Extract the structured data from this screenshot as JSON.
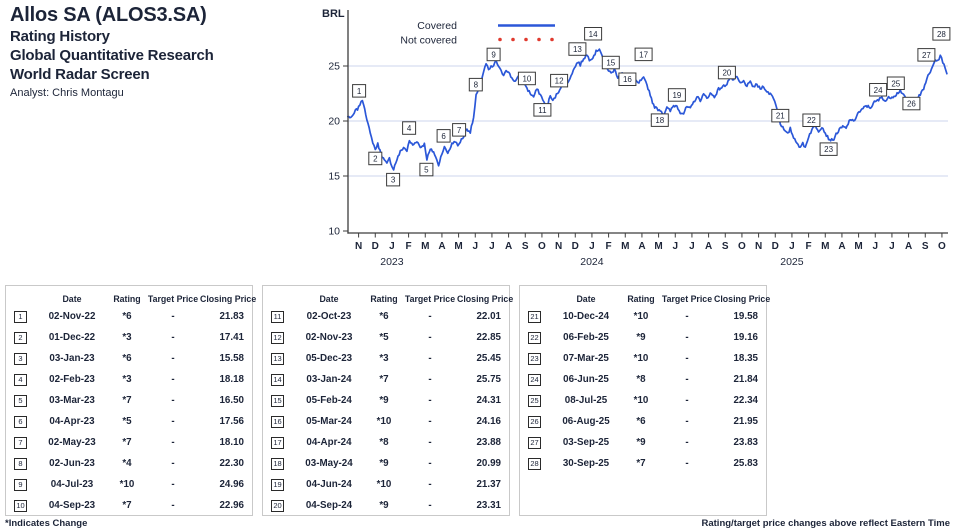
{
  "header": {
    "title": "Allos SA (ALOS3.SA)",
    "subtitle_lines": [
      "Rating History",
      "Global Quantitative Research",
      "World Radar Screen"
    ],
    "analyst": "Analyst: Chris Montagu"
  },
  "colors": {
    "accent_line": "#2b57d8",
    "not_covered": "#e03a2f",
    "grid": "#ccd5ec",
    "axis": "#3c3c3c",
    "text": "#1c2438",
    "table_border": "#c9c9c9"
  },
  "chart_data": {
    "type": "line",
    "currency_label": "BRL",
    "legend": [
      {
        "label": "Covered",
        "style": "solid",
        "color": "#2b57d8"
      },
      {
        "label": "Not covered",
        "style": "dotted",
        "color": "#e03a2f"
      }
    ],
    "y_ticks": [
      25,
      20,
      15,
      10
    ],
    "ylim": [
      10,
      28.5
    ],
    "grid": "horizontal",
    "x_month_labels": [
      "N",
      "D",
      "J",
      "F",
      "M",
      "A",
      "M",
      "J",
      "J",
      "A",
      "S",
      "O",
      "N",
      "D",
      "J",
      "F",
      "M",
      "A",
      "M",
      "J",
      "J",
      "A",
      "S",
      "O",
      "N",
      "D",
      "J",
      "F",
      "M",
      "A",
      "M",
      "J",
      "J",
      "A",
      "S",
      "O"
    ],
    "year_labels": [
      {
        "label": "2023",
        "month_index": 2
      },
      {
        "label": "2024",
        "month_index": 14
      },
      {
        "label": "2025",
        "month_index": 26
      }
    ],
    "price_points": [
      [
        -0.65,
        20.4
      ],
      [
        -0.4,
        20.3
      ],
      [
        -0.2,
        20.9
      ],
      [
        0.0,
        21.2
      ],
      [
        0.15,
        21.85
      ],
      [
        0.3,
        21.6
      ],
      [
        0.5,
        20.2
      ],
      [
        0.7,
        18.8
      ],
      [
        0.85,
        18.1
      ],
      [
        1.0,
        17.41
      ],
      [
        1.15,
        17.9
      ],
      [
        1.35,
        17.0
      ],
      [
        1.55,
        16.4
      ],
      [
        1.7,
        16.1
      ],
      [
        1.85,
        16.6
      ],
      [
        2.0,
        15.9
      ],
      [
        2.1,
        15.65
      ],
      [
        2.3,
        16.5
      ],
      [
        2.5,
        17.2
      ],
      [
        2.7,
        17.6
      ],
      [
        2.9,
        17.3
      ],
      [
        3.05,
        18.18
      ],
      [
        3.25,
        17.8
      ],
      [
        3.5,
        18.2
      ],
      [
        3.7,
        17.6
      ],
      [
        3.95,
        17.9
      ],
      [
        4.1,
        16.55
      ],
      [
        4.3,
        17.4
      ],
      [
        4.5,
        17.2
      ],
      [
        4.7,
        16.4
      ],
      [
        4.8,
        16.0
      ],
      [
        5.0,
        17.1
      ],
      [
        5.15,
        17.6
      ],
      [
        5.35,
        17.1
      ],
      [
        5.6,
        17.9
      ],
      [
        5.8,
        18.2
      ],
      [
        5.95,
        17.7
      ],
      [
        6.1,
        18.15
      ],
      [
        6.3,
        18.6
      ],
      [
        6.5,
        19.3
      ],
      [
        6.7,
        19.0
      ],
      [
        6.9,
        20.3
      ],
      [
        7.05,
        22.3
      ],
      [
        7.2,
        22.8
      ],
      [
        7.35,
        23.6
      ],
      [
        7.5,
        24.5
      ],
      [
        7.65,
        25.2
      ],
      [
        7.8,
        24.6
      ],
      [
        7.95,
        24.9
      ],
      [
        8.1,
        25.0
      ],
      [
        8.25,
        25.5
      ],
      [
        8.4,
        24.9
      ],
      [
        8.55,
        24.5
      ],
      [
        8.7,
        24.2
      ],
      [
        8.85,
        24.7
      ],
      [
        9.0,
        24.4
      ],
      [
        9.2,
        23.9
      ],
      [
        9.4,
        23.6
      ],
      [
        9.6,
        24.0
      ],
      [
        9.8,
        23.8
      ],
      [
        10.0,
        23.3
      ],
      [
        10.1,
        22.96
      ],
      [
        10.3,
        22.5
      ],
      [
        10.5,
        22.2
      ],
      [
        10.7,
        22.9
      ],
      [
        10.9,
        22.4
      ],
      [
        11.05,
        22.0
      ],
      [
        11.2,
        21.4
      ],
      [
        11.35,
        21.5
      ],
      [
        11.5,
        22.3
      ],
      [
        11.65,
        21.8
      ],
      [
        11.8,
        22.2
      ],
      [
        12.0,
        22.7
      ],
      [
        12.2,
        23.3
      ],
      [
        12.4,
        23.7
      ],
      [
        12.55,
        23.4
      ],
      [
        12.75,
        24.2
      ],
      [
        12.95,
        24.8
      ],
      [
        13.15,
        25.4
      ],
      [
        13.3,
        25.1
      ],
      [
        13.5,
        25.7
      ],
      [
        13.7,
        26.0
      ],
      [
        13.85,
        25.6
      ],
      [
        14.05,
        25.8
      ],
      [
        14.25,
        26.3
      ],
      [
        14.45,
        26.6
      ],
      [
        14.6,
        26.0
      ],
      [
        14.8,
        25.2
      ],
      [
        15.0,
        24.6
      ],
      [
        15.15,
        24.31
      ],
      [
        15.35,
        24.7
      ],
      [
        15.55,
        24.0
      ],
      [
        15.75,
        24.4
      ],
      [
        15.95,
        24.2
      ],
      [
        16.15,
        24.1
      ],
      [
        16.35,
        23.6
      ],
      [
        16.55,
        23.9
      ],
      [
        16.75,
        23.4
      ],
      [
        16.95,
        23.7
      ],
      [
        17.1,
        23.88
      ],
      [
        17.3,
        23.3
      ],
      [
        17.5,
        22.4
      ],
      [
        17.7,
        21.4
      ],
      [
        17.9,
        21.1
      ],
      [
        18.1,
        21.0
      ],
      [
        18.3,
        20.6
      ],
      [
        18.5,
        21.2
      ],
      [
        18.7,
        20.9
      ],
      [
        18.9,
        21.4
      ],
      [
        19.1,
        21.37
      ],
      [
        19.3,
        20.8
      ],
      [
        19.5,
        20.7
      ],
      [
        19.7,
        21.3
      ],
      [
        19.9,
        21.1
      ],
      [
        20.1,
        21.7
      ],
      [
        20.3,
        22.2
      ],
      [
        20.5,
        21.9
      ],
      [
        20.7,
        22.4
      ],
      [
        20.9,
        22.1
      ],
      [
        21.1,
        22.5
      ],
      [
        21.35,
        22.2
      ],
      [
        21.6,
        22.9
      ],
      [
        21.85,
        23.1
      ],
      [
        22.1,
        23.4
      ],
      [
        22.3,
        24.0
      ],
      [
        22.5,
        23.7
      ],
      [
        22.7,
        24.0
      ],
      [
        22.9,
        23.4
      ],
      [
        23.1,
        23.6
      ],
      [
        23.3,
        23.2
      ],
      [
        23.5,
        23.5
      ],
      [
        23.7,
        23.1
      ],
      [
        23.9,
        23.3
      ],
      [
        24.1,
        22.9
      ],
      [
        24.3,
        23.2
      ],
      [
        24.5,
        22.6
      ],
      [
        24.7,
        22.5
      ],
      [
        24.9,
        22.1
      ],
      [
        25.1,
        21.2
      ],
      [
        25.3,
        19.8
      ],
      [
        25.45,
        19.4
      ],
      [
        25.6,
        19.0
      ],
      [
        25.75,
        18.8
      ],
      [
        25.9,
        19.3
      ],
      [
        26.1,
        18.5
      ],
      [
        26.3,
        18.1
      ],
      [
        26.5,
        17.5
      ],
      [
        26.65,
        18.0
      ],
      [
        26.8,
        17.6
      ],
      [
        27.0,
        18.6
      ],
      [
        27.2,
        19.2
      ],
      [
        27.4,
        19.6
      ],
      [
        27.6,
        19.1
      ],
      [
        27.8,
        19.5
      ],
      [
        28.0,
        18.9
      ],
      [
        28.2,
        18.4
      ],
      [
        28.45,
        18.2
      ],
      [
        28.65,
        18.8
      ],
      [
        28.85,
        19.2
      ],
      [
        29.05,
        19.5
      ],
      [
        29.25,
        19.3
      ],
      [
        29.5,
        20.2
      ],
      [
        29.7,
        19.9
      ],
      [
        29.95,
        20.7
      ],
      [
        30.2,
        21.0
      ],
      [
        30.45,
        21.4
      ],
      [
        30.7,
        21.2
      ],
      [
        30.95,
        21.7
      ],
      [
        31.2,
        21.9
      ],
      [
        31.4,
        22.2
      ],
      [
        31.6,
        21.8
      ],
      [
        31.8,
        22.1
      ],
      [
        32.0,
        22.2
      ],
      [
        32.25,
        22.4
      ],
      [
        32.5,
        22.8
      ],
      [
        32.7,
        22.3
      ],
      [
        32.9,
        21.9
      ],
      [
        33.1,
        22.0
      ],
      [
        33.3,
        21.6
      ],
      [
        33.5,
        22.0
      ],
      [
        33.7,
        22.4
      ],
      [
        33.9,
        22.9
      ],
      [
        34.1,
        23.9
      ],
      [
        34.3,
        24.4
      ],
      [
        34.45,
        25.0
      ],
      [
        34.6,
        25.6
      ],
      [
        34.75,
        25.4
      ],
      [
        34.9,
        26.0
      ],
      [
        35.05,
        25.4
      ],
      [
        35.2,
        24.7
      ],
      [
        35.3,
        24.3
      ]
    ],
    "events": [
      {
        "n": 1,
        "t": 0.03,
        "price": 21.83,
        "dy": -10
      },
      {
        "n": 2,
        "t": 1.0,
        "price": 17.41,
        "dy": 9
      },
      {
        "n": 3,
        "t": 2.07,
        "price": 15.58,
        "dy": 10
      },
      {
        "n": 4,
        "t": 3.03,
        "price": 18.18,
        "dy": -13
      },
      {
        "n": 5,
        "t": 4.07,
        "price": 16.5,
        "dy": 10
      },
      {
        "n": 6,
        "t": 5.1,
        "price": 17.56,
        "dy": -12
      },
      {
        "n": 7,
        "t": 6.03,
        "price": 18.1,
        "dy": -12
      },
      {
        "n": 8,
        "t": 7.03,
        "price": 22.3,
        "dy": -11
      },
      {
        "n": 9,
        "t": 8.1,
        "price": 24.96,
        "dy": -12
      },
      {
        "n": 10,
        "t": 10.1,
        "price": 22.96,
        "dy": -10
      },
      {
        "n": 11,
        "t": 11.03,
        "price": 22.01,
        "dy": 11
      },
      {
        "n": 12,
        "t": 12.03,
        "price": 22.85,
        "dy": -9
      },
      {
        "n": 13,
        "t": 13.13,
        "price": 25.45,
        "dy": -12
      },
      {
        "n": 14,
        "t": 14.07,
        "price": 25.75,
        "dy": -24
      },
      {
        "n": 15,
        "t": 15.13,
        "price": 24.31,
        "dy": -11
      },
      {
        "n": 16,
        "t": 16.13,
        "price": 24.16,
        "dy": 4
      },
      {
        "n": 17,
        "t": 17.1,
        "price": 23.88,
        "dy": -24
      },
      {
        "n": 18,
        "t": 18.07,
        "price": 20.99,
        "dy": 10
      },
      {
        "n": 19,
        "t": 19.1,
        "price": 21.37,
        "dy": -11
      },
      {
        "n": 20,
        "t": 22.1,
        "price": 23.31,
        "dy": -12
      },
      {
        "n": 21,
        "t": 25.3,
        "price": 19.58,
        "dy": -10
      },
      {
        "n": 22,
        "t": 27.17,
        "price": 19.16,
        "dy": -10
      },
      {
        "n": 23,
        "t": 28.2,
        "price": 18.35,
        "dy": 10
      },
      {
        "n": 24,
        "t": 31.17,
        "price": 21.84,
        "dy": -11
      },
      {
        "n": 25,
        "t": 32.23,
        "price": 22.34,
        "dy": -12
      },
      {
        "n": 26,
        "t": 33.17,
        "price": 21.95,
        "dy": 4
      },
      {
        "n": 27,
        "t": 34.07,
        "price": 23.83,
        "dy": -24
      },
      {
        "n": 28,
        "t": 34.97,
        "price": 25.83,
        "dy": -23
      }
    ]
  },
  "table_headers": {
    "date": "Date",
    "rating": "Rating",
    "target": "Target Price",
    "close": "Closing Price"
  },
  "tables": [
    {
      "rows": [
        [
          "1",
          "02-Nov-22",
          "*6",
          "-",
          "21.83"
        ],
        [
          "2",
          "01-Dec-22",
          "*3",
          "-",
          "17.41"
        ],
        [
          "3",
          "03-Jan-23",
          "*6",
          "-",
          "15.58"
        ],
        [
          "4",
          "02-Feb-23",
          "*3",
          "-",
          "18.18"
        ],
        [
          "5",
          "03-Mar-23",
          "*7",
          "-",
          "16.50"
        ],
        [
          "6",
          "04-Apr-23",
          "*5",
          "-",
          "17.56"
        ],
        [
          "7",
          "02-May-23",
          "*7",
          "-",
          "18.10"
        ],
        [
          "8",
          "02-Jun-23",
          "*4",
          "-",
          "22.30"
        ],
        [
          "9",
          "04-Jul-23",
          "*10",
          "-",
          "24.96"
        ],
        [
          "10",
          "04-Sep-23",
          "*7",
          "-",
          "22.96"
        ]
      ]
    },
    {
      "rows": [
        [
          "11",
          "02-Oct-23",
          "*6",
          "-",
          "22.01"
        ],
        [
          "12",
          "02-Nov-23",
          "*5",
          "-",
          "22.85"
        ],
        [
          "13",
          "05-Dec-23",
          "*3",
          "-",
          "25.45"
        ],
        [
          "14",
          "03-Jan-24",
          "*7",
          "-",
          "25.75"
        ],
        [
          "15",
          "05-Feb-24",
          "*9",
          "-",
          "24.31"
        ],
        [
          "16",
          "05-Mar-24",
          "*10",
          "-",
          "24.16"
        ],
        [
          "17",
          "04-Apr-24",
          "*8",
          "-",
          "23.88"
        ],
        [
          "18",
          "03-May-24",
          "*9",
          "-",
          "20.99"
        ],
        [
          "19",
          "04-Jun-24",
          "*10",
          "-",
          "21.37"
        ],
        [
          "20",
          "04-Sep-24",
          "*9",
          "-",
          "23.31"
        ]
      ]
    },
    {
      "rows": [
        [
          "21",
          "10-Dec-24",
          "*10",
          "-",
          "19.58"
        ],
        [
          "22",
          "06-Feb-25",
          "*9",
          "-",
          "19.16"
        ],
        [
          "23",
          "07-Mar-25",
          "*10",
          "-",
          "18.35"
        ],
        [
          "24",
          "06-Jun-25",
          "*8",
          "-",
          "21.84"
        ],
        [
          "25",
          "08-Jul-25",
          "*10",
          "-",
          "22.34"
        ],
        [
          "26",
          "06-Aug-25",
          "*6",
          "-",
          "21.95"
        ],
        [
          "27",
          "03-Sep-25",
          "*9",
          "-",
          "23.83"
        ],
        [
          "28",
          "30-Sep-25",
          "*7",
          "-",
          "25.83"
        ]
      ]
    }
  ],
  "footnotes": {
    "left": "*Indicates Change",
    "right": "Rating/target price changes above reflect Eastern Time"
  }
}
